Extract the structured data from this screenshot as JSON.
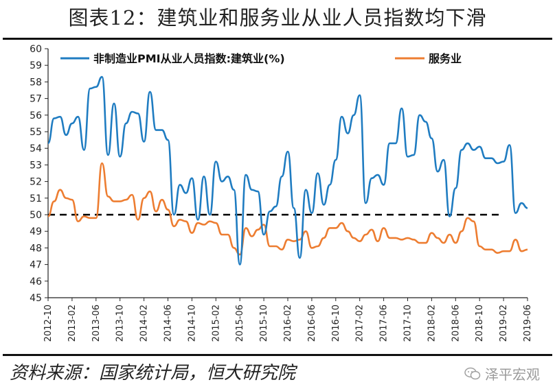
{
  "title": "图表12：建筑业和服务业从业人员指数均下滑",
  "source": "资料来源：国家统计局，恒大研究院",
  "watermark": "泽平宏观",
  "chart_data": {
    "type": "line",
    "ylim": [
      45,
      60
    ],
    "yticks": [
      45,
      46,
      47,
      48,
      49,
      50,
      51,
      52,
      53,
      54,
      55,
      56,
      57,
      58,
      59,
      60
    ],
    "x": [
      "2012-10",
      "2012-11",
      "2012-12",
      "2013-01",
      "2013-02",
      "2013-03",
      "2013-04",
      "2013-05",
      "2013-06",
      "2013-07",
      "2013-08",
      "2013-09",
      "2013-10",
      "2013-11",
      "2013-12",
      "2014-01",
      "2014-02",
      "2014-03",
      "2014-04",
      "2014-05",
      "2014-06",
      "2014-07",
      "2014-08",
      "2014-09",
      "2014-10",
      "2014-11",
      "2014-12",
      "2015-01",
      "2015-02",
      "2015-03",
      "2015-04",
      "2015-05",
      "2015-06",
      "2015-07",
      "2015-08",
      "2015-09",
      "2015-10",
      "2015-11",
      "2015-12",
      "2016-01",
      "2016-02",
      "2016-03",
      "2016-04",
      "2016-05",
      "2016-06",
      "2016-07",
      "2016-08",
      "2016-09",
      "2016-10",
      "2016-11",
      "2016-12",
      "2017-01",
      "2017-02",
      "2017-03",
      "2017-04",
      "2017-05",
      "2017-06",
      "2017-07",
      "2017-08",
      "2017-09",
      "2017-10",
      "2017-11",
      "2017-12",
      "2018-01",
      "2018-02",
      "2018-03",
      "2018-04",
      "2018-05",
      "2018-06",
      "2018-07",
      "2018-08",
      "2018-09",
      "2018-10",
      "2018-11",
      "2018-12",
      "2019-01",
      "2019-02",
      "2019-03",
      "2019-04",
      "2019-05",
      "2019-06"
    ],
    "xtick_labels": [
      "2012-10",
      "2013-02",
      "2013-06",
      "2013-10",
      "2014-02",
      "2014-06",
      "2014-10",
      "2015-02",
      "2015-06",
      "2015-10",
      "2016-02",
      "2016-06",
      "2016-10",
      "2017-02",
      "2017-06",
      "2017-10",
      "2018-02",
      "2018-06",
      "2018-10",
      "2019-02",
      "2019-06"
    ],
    "reference_line": 50,
    "series": [
      {
        "name": "非制造业PMI从业人员指数:建筑业(%)",
        "color": "#1f7cc1",
        "values": [
          54.3,
          55.8,
          55.9,
          54.8,
          55.5,
          55.9,
          53.9,
          57.6,
          57.7,
          58.3,
          53.6,
          56.7,
          53.5,
          55.5,
          56.2,
          56.1,
          54.4,
          57.4,
          55.1,
          55.1,
          54.5,
          50.0,
          51.8,
          51.3,
          52.2,
          49.7,
          52.3,
          50.0,
          53.2,
          52.0,
          52.3,
          51.5,
          47.0,
          52.4,
          51.5,
          51.4,
          48.8,
          50.2,
          50.5,
          52.3,
          53.8,
          50.4,
          47.4,
          51.5,
          50.1,
          52.5,
          50.6,
          51.8,
          53.3,
          55.9,
          54.9,
          56.0,
          57.2,
          50.7,
          52.2,
          52.4,
          51.8,
          54.3,
          54.3,
          56.4,
          53.5,
          53.6,
          56.0,
          55.6,
          54.6,
          52.6,
          53.3,
          49.9,
          51.6,
          53.9,
          54.3,
          53.9,
          54.1,
          53.4,
          53.4,
          53.1,
          53.2,
          54.2,
          50.1,
          50.7,
          50.4
        ]
      },
      {
        "name": "服务业",
        "color": "#ed7d31",
        "values": [
          49.9,
          50.8,
          51.5,
          51.0,
          50.9,
          49.6,
          49.9,
          49.8,
          49.8,
          53.1,
          51.1,
          50.8,
          50.8,
          50.9,
          51.2,
          49.7,
          51.0,
          51.4,
          50.2,
          50.9,
          50.3,
          49.3,
          49.7,
          49.6,
          48.9,
          49.5,
          49.4,
          49.6,
          49.5,
          48.8,
          48.8,
          48.0,
          47.6,
          49.2,
          48.7,
          49.1,
          49.4,
          48.1,
          48.1,
          47.9,
          48.5,
          48.4,
          48.5,
          49.0,
          48.0,
          48.1,
          48.6,
          49.2,
          49.2,
          49.5,
          49.0,
          48.6,
          48.4,
          48.8,
          49.1,
          48.4,
          49.2,
          48.6,
          48.6,
          48.5,
          48.6,
          48.5,
          48.3,
          48.3,
          48.9,
          48.6,
          48.3,
          48.8,
          48.3,
          49.0,
          49.8,
          49.6,
          48.1,
          47.9,
          47.9,
          47.7,
          47.8,
          47.8,
          48.5,
          47.8,
          47.9
        ]
      }
    ]
  }
}
